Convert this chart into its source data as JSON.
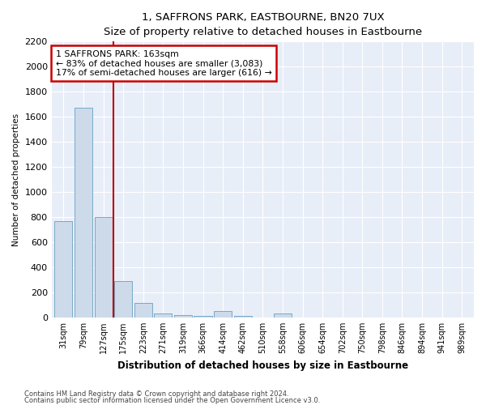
{
  "title": "1, SAFFRONS PARK, EASTBOURNE, BN20 7UX",
  "subtitle": "Size of property relative to detached houses in Eastbourne",
  "xlabel": "Distribution of detached houses by size in Eastbourne",
  "ylabel": "Number of detached properties",
  "categories": [
    "31sqm",
    "79sqm",
    "127sqm",
    "175sqm",
    "223sqm",
    "271sqm",
    "319sqm",
    "366sqm",
    "414sqm",
    "462sqm",
    "510sqm",
    "558sqm",
    "606sqm",
    "654sqm",
    "702sqm",
    "750sqm",
    "798sqm",
    "846sqm",
    "894sqm",
    "941sqm",
    "989sqm"
  ],
  "values": [
    770,
    1670,
    800,
    290,
    115,
    30,
    20,
    15,
    50,
    12,
    0,
    30,
    0,
    0,
    0,
    0,
    0,
    0,
    0,
    0,
    0
  ],
  "bar_color": "#ccdaea",
  "bar_edge_color": "#6a9fc0",
  "vline_color": "#bb0000",
  "annotation_line1": "1 SAFFRONS PARK: 163sqm",
  "annotation_line2": "← 83% of detached houses are smaller (3,083)",
  "annotation_line3": "17% of semi-detached houses are larger (616) →",
  "annotation_box_color": "#cc0000",
  "ylim": [
    0,
    2200
  ],
  "yticks": [
    0,
    200,
    400,
    600,
    800,
    1000,
    1200,
    1400,
    1600,
    1800,
    2000,
    2200
  ],
  "footer1": "Contains HM Land Registry data © Crown copyright and database right 2024.",
  "footer2": "Contains public sector information licensed under the Open Government Licence v3.0.",
  "plot_bg_color": "#e8eef8",
  "fig_bg_color": "#ffffff",
  "grid_color": "#ffffff"
}
